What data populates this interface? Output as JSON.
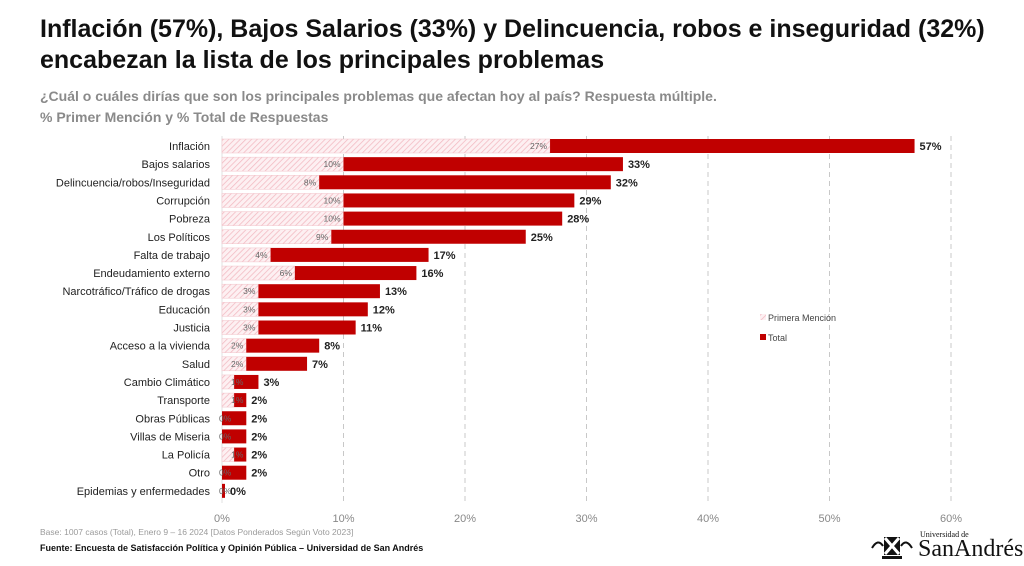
{
  "chart_data": {
    "type": "bar",
    "orientation": "horizontal",
    "title": "Inflación (57%), Bajos Salarios (33%) y Delincuencia, robos e inseguridad (32%) encabezan la lista de los principales problemas",
    "subtitle": "¿Cuál o cuáles dirías que son los principales problemas que afectan hoy al país? Respuesta múltiple.",
    "subtitle2": "% Primer Mención y % Total de Respuestas",
    "categories": [
      "Inflación",
      "Bajos salarios",
      "Delincuencia/robos/Inseguridad",
      "Corrupción",
      "Pobreza",
      "Los Políticos",
      "Falta de trabajo",
      "Endeudamiento externo",
      "Narcotráfico/Tráfico de drogas",
      "Educación",
      "Justicia",
      "Acceso a la vivienda",
      "Salud",
      "Cambio Climático",
      "Transporte",
      "Obras Públicas",
      "Villas de Miseria",
      "La Policía",
      "Otro",
      "Epidemias y enfermedades"
    ],
    "series": [
      {
        "name": "Primera Mención",
        "color": "#f8d8dc",
        "values": [
          27,
          10,
          8,
          10,
          10,
          9,
          4,
          6,
          3,
          3,
          3,
          2,
          2,
          1,
          1,
          0,
          0,
          1,
          0,
          0
        ]
      },
      {
        "name": "Total",
        "color": "#c00000",
        "values": [
          57,
          33,
          32,
          29,
          28,
          25,
          17,
          16,
          13,
          12,
          11,
          8,
          7,
          3,
          2,
          2,
          2,
          2,
          2,
          0
        ]
      }
    ],
    "xlim": [
      0,
      60
    ],
    "xticks": [
      "0%",
      "10%",
      "20%",
      "30%",
      "40%",
      "50%",
      "60%"
    ],
    "grid": "vertical dashed",
    "legend": "right-middle"
  },
  "footer": {
    "base": "Base: 1007 casos (Total), Enero 9 – 16 2024 [Datos Ponderados Según Voto 2023]",
    "source": "Fuente: Encuesta de Satisfacción Política y Opinión Pública – Universidad de San Andrés"
  },
  "logo": {
    "top": "Universidad de",
    "main": "SanAndrés"
  }
}
